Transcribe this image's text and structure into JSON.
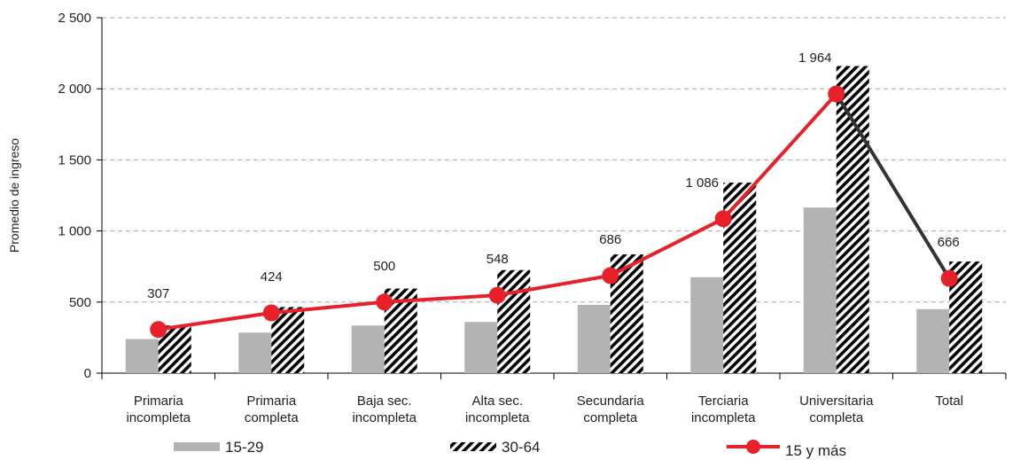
{
  "chart_data": {
    "type": "bar",
    "title": "",
    "xlabel": "",
    "ylabel": "Promedio de ingreso",
    "ylim": [
      0,
      2500
    ],
    "yticks": [
      0,
      500,
      1000,
      1500,
      2000,
      2500
    ],
    "ytick_labels": [
      "0",
      "500",
      "1 000",
      "1 500",
      "2 000",
      "2 500"
    ],
    "grid": "horizontal-dashed",
    "legend_position": "bottom",
    "categories": [
      [
        "Primaria",
        "incompleta"
      ],
      [
        "Primaria",
        "completa"
      ],
      [
        "Baja sec.",
        "incompleta"
      ],
      [
        "Alta sec.",
        "incompleta"
      ],
      [
        "Secundaria",
        "completa"
      ],
      [
        "Terciaria",
        "incompleta"
      ],
      [
        "Universitaria",
        "completa"
      ],
      [
        "Total"
      ]
    ],
    "series": [
      {
        "name": "15-29",
        "kind": "bar",
        "style": "solid-gray",
        "color": "#b3b3b3",
        "values": [
          240,
          285,
          335,
          360,
          480,
          675,
          1165,
          450
        ]
      },
      {
        "name": "30-64",
        "kind": "bar",
        "style": "diagonal-hatch",
        "color": "#000000",
        "values": [
          335,
          465,
          595,
          725,
          835,
          1340,
          2160,
          785
        ]
      },
      {
        "name": "15 y más",
        "kind": "line",
        "style": "line-with-markers",
        "color": "#e8202a",
        "values": [
          307,
          424,
          500,
          548,
          686,
          1086,
          1964,
          666
        ],
        "labels": [
          "307",
          "424",
          "500",
          "548",
          "686",
          "1 086",
          "1 964",
          "666"
        ],
        "last_segment_color": "#333333"
      }
    ]
  }
}
